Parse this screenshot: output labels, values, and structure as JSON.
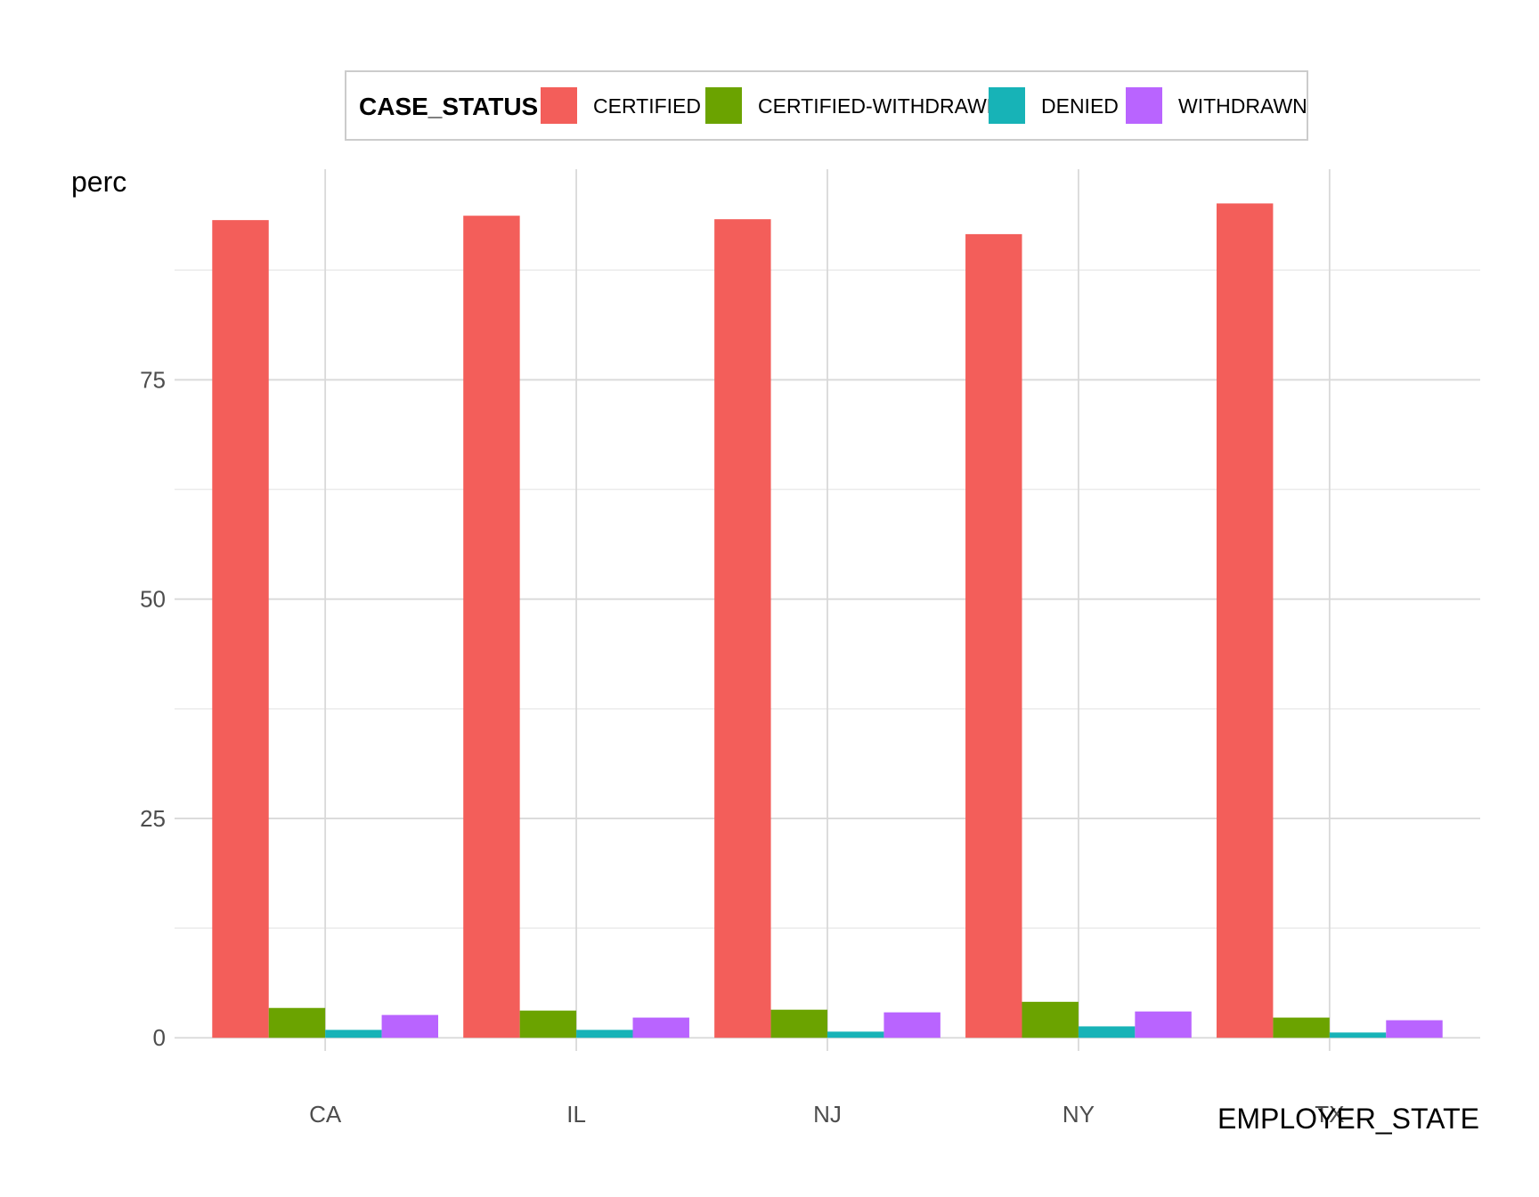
{
  "chart_data": {
    "type": "bar",
    "xlabel": "EMPLOYER_STATE",
    "ylabel": "perc",
    "ylim": [
      -1.5,
      99
    ],
    "yticks": [
      0,
      25,
      50,
      75
    ],
    "grid": true,
    "legend": {
      "title": "CASE_STATUS",
      "position": "top"
    },
    "categories": [
      "CA",
      "IL",
      "NJ",
      "NY",
      "TX"
    ],
    "series": [
      {
        "name": "CERTIFIED",
        "color": "#F35E5A",
        "values": [
          93.2,
          93.7,
          93.3,
          91.6,
          95.1
        ]
      },
      {
        "name": "CERTIFIED-WITHDRAWN",
        "color": "#6BA300",
        "values": [
          3.4,
          3.1,
          3.2,
          4.1,
          2.3
        ]
      },
      {
        "name": "DENIED",
        "color": "#17B3B7",
        "values": [
          0.9,
          0.9,
          0.7,
          1.3,
          0.6
        ]
      },
      {
        "name": "WITHDRAWN",
        "color": "#B964FF",
        "values": [
          2.6,
          2.3,
          2.9,
          3.0,
          2.0
        ]
      }
    ]
  }
}
